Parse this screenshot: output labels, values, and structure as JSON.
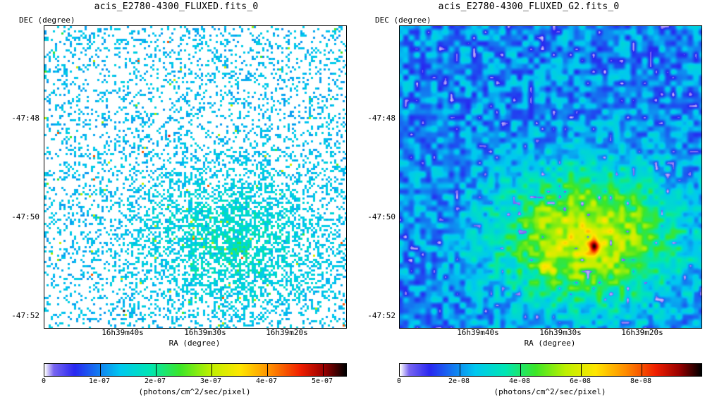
{
  "panels": [
    {
      "title": "acis_E2780-4300_FLUXED.fits_0",
      "dec_label": "DEC (degree)",
      "ra_label": "RA (degree)",
      "y_ticks": [
        "-47:48",
        "-47:50",
        "-47:52"
      ],
      "x_ticks": [
        "16h39m40s",
        "16h39m30s",
        "16h39m20s"
      ],
      "colorbar_ticks": [
        "0",
        "1e-07",
        "2e-07",
        "3e-07",
        "4e-07",
        "5e-07"
      ],
      "colorbar_unit": "(photons/cm^2/sec/pixel)"
    },
    {
      "title": "acis_E2780-4300_FLUXED_G2.fits_0",
      "dec_label": "DEC (degree)",
      "ra_label": "RA (degree)",
      "y_ticks": [
        "-47:48",
        "-47:50",
        "-47:52"
      ],
      "x_ticks": [
        "16h39m40s",
        "16h39m30s",
        "16h39m20s"
      ],
      "colorbar_ticks": [
        "0",
        "2e-08",
        "4e-08",
        "6e-08",
        "8e-08"
      ],
      "colorbar_unit": "(photons/cm^2/sec/pixel)"
    }
  ],
  "chart_data": [
    {
      "type": "heatmap",
      "title": "acis_E2780-4300_FLUXED.fits_0",
      "xlabel": "RA (degree)",
      "ylabel": "DEC (degree)",
      "x_tick_labels": [
        "16h39m40s",
        "16h39m30s",
        "16h39m20s"
      ],
      "y_tick_labels": [
        "-47:48",
        "-47:50",
        "-47:52"
      ],
      "colorbar_range": [
        0,
        5.4e-07
      ],
      "colorbar_ticks": [
        0,
        1e-07,
        2e-07,
        3e-07,
        4e-07,
        5e-07
      ],
      "colorbar_label": "(photons/cm^2/sec/pixel)",
      "colormap": "rainbow (white-blue-cyan-green-yellow-red-black)",
      "appearance": "sparse unsmoothed counts, concentration near center-lower right"
    },
    {
      "type": "heatmap",
      "title": "acis_E2780-4300_FLUXED_G2.fits_0",
      "xlabel": "RA (degree)",
      "ylabel": "DEC (degree)",
      "x_tick_labels": [
        "16h39m40s",
        "16h39m30s",
        "16h39m20s"
      ],
      "y_tick_labels": [
        "-47:48",
        "-47:50",
        "-47:52"
      ],
      "colorbar_range": [
        0,
        1e-07
      ],
      "colorbar_ticks": [
        0,
        2e-08,
        4e-08,
        6e-08,
        8e-08
      ],
      "colorbar_label": "(photons/cm^2/sec/pixel)",
      "colormap": "rainbow (white-blue-cyan-green-yellow-red-black)",
      "appearance": "gaussian smoothed, diffuse emission peaking near center-lower right"
    }
  ]
}
